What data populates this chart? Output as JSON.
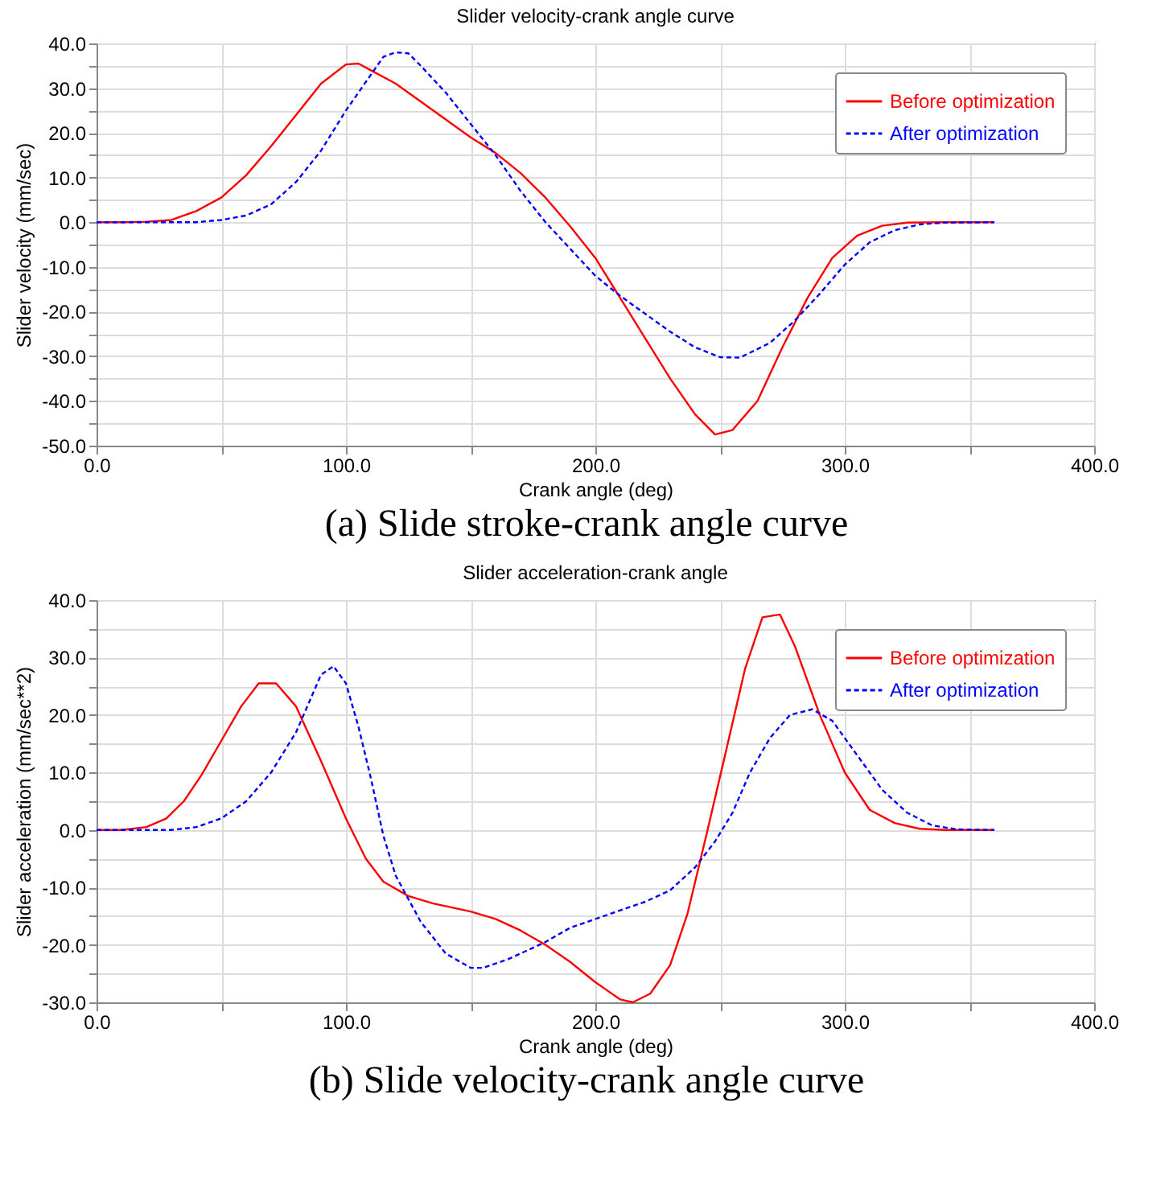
{
  "chart_data": [
    {
      "type": "line",
      "title": "Slider velocity-crank angle curve",
      "xlabel": "Crank angle (deg)",
      "ylabel": "Slider velocity (mm/sec)",
      "annotations": [
        "(a) Slide stroke-crank angle curve"
      ],
      "xlim": [
        0,
        400
      ],
      "ylim": [
        -50,
        40
      ],
      "xticks": [
        {
          "value": 0,
          "label": "0.0"
        },
        {
          "value": 50,
          "label": null
        },
        {
          "value": 100,
          "label": "100.0"
        },
        {
          "value": 150,
          "label": null
        },
        {
          "value": 200,
          "label": "200.0"
        },
        {
          "value": 250,
          "label": null
        },
        {
          "value": 300,
          "label": "300.0"
        },
        {
          "value": 350,
          "label": null
        },
        {
          "value": 400,
          "label": "400.0"
        }
      ],
      "yticks": [
        {
          "value": -50,
          "label": "-50.0"
        },
        {
          "value": -45,
          "label": null
        },
        {
          "value": -40,
          "label": "-40.0"
        },
        {
          "value": -35,
          "label": null
        },
        {
          "value": -30,
          "label": "-30.0"
        },
        {
          "value": -25,
          "label": null
        },
        {
          "value": -20,
          "label": "-20.0"
        },
        {
          "value": -15,
          "label": null
        },
        {
          "value": -10,
          "label": "-10.0"
        },
        {
          "value": -5,
          "label": null
        },
        {
          "value": 0,
          "label": "0.0"
        },
        {
          "value": 5,
          "label": null
        },
        {
          "value": 10,
          "label": "10.0"
        },
        {
          "value": 15,
          "label": null
        },
        {
          "value": 20,
          "label": "20.0"
        },
        {
          "value": 25,
          "label": null
        },
        {
          "value": 30,
          "label": "30.0"
        },
        {
          "value": 35,
          "label": null
        },
        {
          "value": 40,
          "label": "40.0"
        }
      ],
      "grid": true,
      "legend": "top right",
      "marker": "none",
      "series": [
        {
          "name": "Before optimization",
          "color": "#ff0000",
          "line_style": "solid",
          "x": [
            0,
            10,
            20,
            30,
            40,
            50,
            60,
            70,
            80,
            90,
            100,
            105,
            110,
            120,
            130,
            140,
            150,
            160,
            170,
            180,
            190,
            200,
            210,
            220,
            230,
            240,
            248,
            255,
            265,
            275,
            285,
            295,
            305,
            315,
            325,
            340,
            360
          ],
          "values": [
            0,
            0,
            0.1,
            0.5,
            2.5,
            5.5,
            10.5,
            17,
            24,
            31,
            35.3,
            35.5,
            34,
            31,
            27,
            23,
            19,
            15.5,
            11,
            5.5,
            -1,
            -8,
            -17,
            -26,
            -35,
            -43,
            -47.5,
            -46.5,
            -40,
            -28,
            -17,
            -8,
            -3,
            -0.8,
            -0.1,
            0,
            0
          ]
        },
        {
          "name": "After optimization",
          "color": "#0000ff",
          "line_style": "dashed",
          "x": [
            0,
            40,
            50,
            60,
            70,
            80,
            90,
            100,
            110,
            115,
            120,
            125,
            130,
            140,
            150,
            160,
            170,
            180,
            190,
            200,
            210,
            220,
            230,
            240,
            250,
            258,
            270,
            280,
            290,
            300,
            310,
            320,
            330,
            340,
            360
          ],
          "values": [
            0,
            0,
            0.5,
            1.5,
            4,
            9,
            16,
            25,
            33,
            37,
            38,
            37.8,
            35,
            29,
            22,
            15,
            7,
            0,
            -6,
            -12,
            -16.5,
            -20.5,
            -24.5,
            -28,
            -30.2,
            -30.3,
            -27,
            -22,
            -16,
            -9.5,
            -4.5,
            -1.8,
            -0.5,
            -0.1,
            0
          ]
        }
      ]
    },
    {
      "type": "line",
      "title": "Slider acceleration-crank angle",
      "xlabel": "Crank angle (deg)",
      "ylabel": "Slider acceleration (mm/sec**2)",
      "annotations": [
        "(b) Slide velocity-crank angle curve"
      ],
      "xlim": [
        0,
        400
      ],
      "ylim": [
        -30,
        40
      ],
      "xticks": [
        {
          "value": 0,
          "label": "0.0"
        },
        {
          "value": 50,
          "label": null
        },
        {
          "value": 100,
          "label": "100.0"
        },
        {
          "value": 150,
          "label": null
        },
        {
          "value": 200,
          "label": "200.0"
        },
        {
          "value": 250,
          "label": null
        },
        {
          "value": 300,
          "label": "300.0"
        },
        {
          "value": 350,
          "label": null
        },
        {
          "value": 400,
          "label": "400.0"
        }
      ],
      "yticks": [
        {
          "value": -30,
          "label": "-30.0"
        },
        {
          "value": -25,
          "label": null
        },
        {
          "value": -20,
          "label": "-20.0"
        },
        {
          "value": -15,
          "label": null
        },
        {
          "value": -10,
          "label": "-10.0"
        },
        {
          "value": -5,
          "label": null
        },
        {
          "value": 0,
          "label": "0.0"
        },
        {
          "value": 5,
          "label": null
        },
        {
          "value": 10,
          "label": "10.0"
        },
        {
          "value": 15,
          "label": null
        },
        {
          "value": 20,
          "label": "20.0"
        },
        {
          "value": 25,
          "label": null
        },
        {
          "value": 30,
          "label": "30.0"
        },
        {
          "value": 35,
          "label": null
        },
        {
          "value": 40,
          "label": "40.0"
        }
      ],
      "grid": true,
      "legend": "top right",
      "marker": "none",
      "series": [
        {
          "name": "Before optimization",
          "color": "#ff0000",
          "line_style": "solid",
          "x": [
            0,
            10,
            20,
            28,
            35,
            42,
            50,
            58,
            65,
            72,
            80,
            90,
            100,
            108,
            115,
            125,
            135,
            150,
            160,
            170,
            180,
            190,
            200,
            210,
            215,
            222,
            230,
            237,
            245,
            252,
            260,
            267,
            274,
            280,
            290,
            300,
            310,
            320,
            330,
            340,
            360
          ],
          "values": [
            0,
            0,
            0.5,
            2,
            5,
            9.5,
            15.5,
            21.5,
            25.5,
            25.5,
            21.5,
            12,
            2,
            -5,
            -9,
            -11.5,
            -12.8,
            -14.2,
            -15.5,
            -17.5,
            -20,
            -23,
            -26.5,
            -29.5,
            -30,
            -28.5,
            -23.5,
            -14.5,
            0,
            13,
            28,
            37,
            37.5,
            32,
            20,
            10,
            3.5,
            1.2,
            0.2,
            0,
            0
          ]
        },
        {
          "name": "After optimization",
          "color": "#0000ff",
          "line_style": "dashed",
          "x": [
            0,
            30,
            40,
            50,
            60,
            70,
            80,
            90,
            95,
            100,
            105,
            110,
            115,
            120,
            130,
            140,
            150,
            155,
            165,
            180,
            190,
            200,
            210,
            220,
            230,
            240,
            248,
            255,
            262,
            270,
            278,
            287,
            295,
            305,
            315,
            325,
            335,
            345,
            360
          ],
          "values": [
            0,
            0,
            0.5,
            2,
            5,
            10,
            17,
            27,
            28.5,
            25.5,
            18,
            9,
            -1,
            -8,
            -16,
            -21.5,
            -24,
            -24,
            -22.5,
            -19.5,
            -17,
            -15.5,
            -14,
            -12.5,
            -10.5,
            -6.5,
            -2,
            3,
            10,
            16,
            20,
            21,
            19,
            13,
            7,
            3,
            0.8,
            0.1,
            0
          ]
        }
      ]
    }
  ]
}
